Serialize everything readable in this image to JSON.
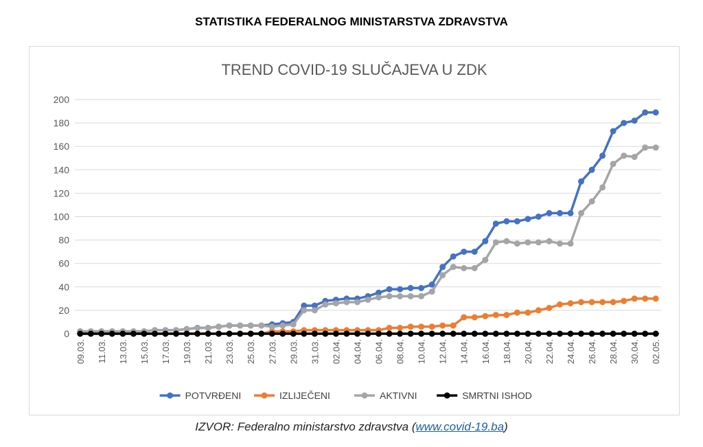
{
  "page_title": "STATISTIKA FEDERALNOG MINISTARSTVA ZDRAVSTVA",
  "source": {
    "prefix": "IZVOR: Federalno ministarstvo zdravstva (",
    "link": "www.covid-19.ba",
    "suffix": ")"
  },
  "chart_data": {
    "type": "line",
    "title": "TREND COVID-19 SLUČAJEVA U ZDK",
    "ylim": [
      0,
      200
    ],
    "yticks": [
      0,
      20,
      40,
      60,
      80,
      100,
      120,
      140,
      160,
      180,
      200
    ],
    "grid": true,
    "legend_position": "bottom",
    "categories": [
      "09.03.",
      "10.03.",
      "11.03.",
      "12.03.",
      "13.03.",
      "14.03.",
      "15.03.",
      "16.03.",
      "17.03.",
      "18.03.",
      "19.03.",
      "20.03.",
      "21.03.",
      "22.03.",
      "23.03.",
      "24.03.",
      "25.03.",
      "26.03.",
      "27.03.",
      "28.03.",
      "29.03.",
      "30.03.",
      "31.03.",
      "01.04.",
      "02.04.",
      "03.04.",
      "04.04.",
      "05.04.",
      "06.04.",
      "07.04.",
      "08.04.",
      "09.04.",
      "10.04.",
      "11.04.",
      "12.04.",
      "13.04.",
      "14.04.",
      "15.04.",
      "16.04.",
      "17.04.",
      "18.04.",
      "19.04.",
      "20.04.",
      "21.04.",
      "22.04.",
      "23.04.",
      "24.04.",
      "25.04.",
      "26.04.",
      "27.04.",
      "28.04.",
      "29.04.",
      "30.04.",
      "01.05.",
      "02.05."
    ],
    "tick_labels": [
      "09.03.",
      "11.03.",
      "13.03.",
      "15.03.",
      "17.03.",
      "19.03.",
      "21.03.",
      "23.03.",
      "25.03.",
      "27.03.",
      "29.03.",
      "31.03.",
      "02.04.",
      "04.04.",
      "06.04.",
      "08.04.",
      "10.04.",
      "12.04.",
      "14.04.",
      "16.04.",
      "18.04.",
      "20.04.",
      "22.04.",
      "24.04.",
      "26.04.",
      "28.04.",
      "30.04.",
      "02.05."
    ],
    "series": [
      {
        "name": "POTVRĐENI",
        "color": "#4472c4",
        "values": [
          2,
          2,
          2,
          2,
          2,
          2,
          2,
          3,
          3,
          3,
          4,
          5,
          5,
          6,
          7,
          7,
          7,
          7,
          8,
          9,
          10,
          24,
          24,
          28,
          29,
          30,
          30,
          32,
          35,
          38,
          38,
          39,
          39,
          42,
          57,
          66,
          70,
          70,
          79,
          94,
          96,
          96,
          98,
          100,
          103,
          103,
          103,
          130,
          140,
          152,
          173,
          180,
          182,
          189,
          189
        ]
      },
      {
        "name": "IZLIJEČENI",
        "color": "#ed7d31",
        "values": [
          0,
          0,
          0,
          0,
          0,
          0,
          0,
          0,
          0,
          0,
          0,
          0,
          0,
          0,
          0,
          0,
          0,
          0,
          2,
          2,
          2,
          3,
          3,
          3,
          3,
          3,
          3,
          3,
          3,
          5,
          5,
          6,
          6,
          6,
          7,
          7,
          14,
          14,
          15,
          16,
          16,
          18,
          18,
          20,
          22,
          25,
          26,
          27,
          27,
          27,
          27,
          28,
          30,
          30,
          30
        ]
      },
      {
        "name": "AKTIVNI",
        "color": "#a5a5a5",
        "values": [
          2,
          2,
          2,
          2,
          2,
          2,
          2,
          3,
          3,
          3,
          4,
          5,
          5,
          6,
          7,
          7,
          7,
          7,
          6,
          7,
          8,
          20,
          20,
          25,
          26,
          27,
          27,
          29,
          31,
          32,
          32,
          32,
          32,
          36,
          50,
          57,
          56,
          56,
          63,
          78,
          79,
          77,
          78,
          78,
          79,
          77,
          77,
          103,
          113,
          125,
          145,
          152,
          151,
          159,
          159
        ]
      },
      {
        "name": "SMRTNI ISHOD",
        "color": "#000000",
        "values": [
          0,
          0,
          0,
          0,
          0,
          0,
          0,
          0,
          0,
          0,
          0,
          0,
          0,
          0,
          0,
          0,
          0,
          0,
          0,
          0,
          0,
          0,
          0,
          0,
          0,
          0,
          0,
          0,
          0,
          0,
          0,
          0,
          0,
          0,
          0,
          0,
          0,
          0,
          0,
          0,
          0,
          0,
          0,
          0,
          0,
          0,
          0,
          0,
          0,
          0,
          0,
          0,
          0,
          0,
          0
        ]
      }
    ]
  }
}
